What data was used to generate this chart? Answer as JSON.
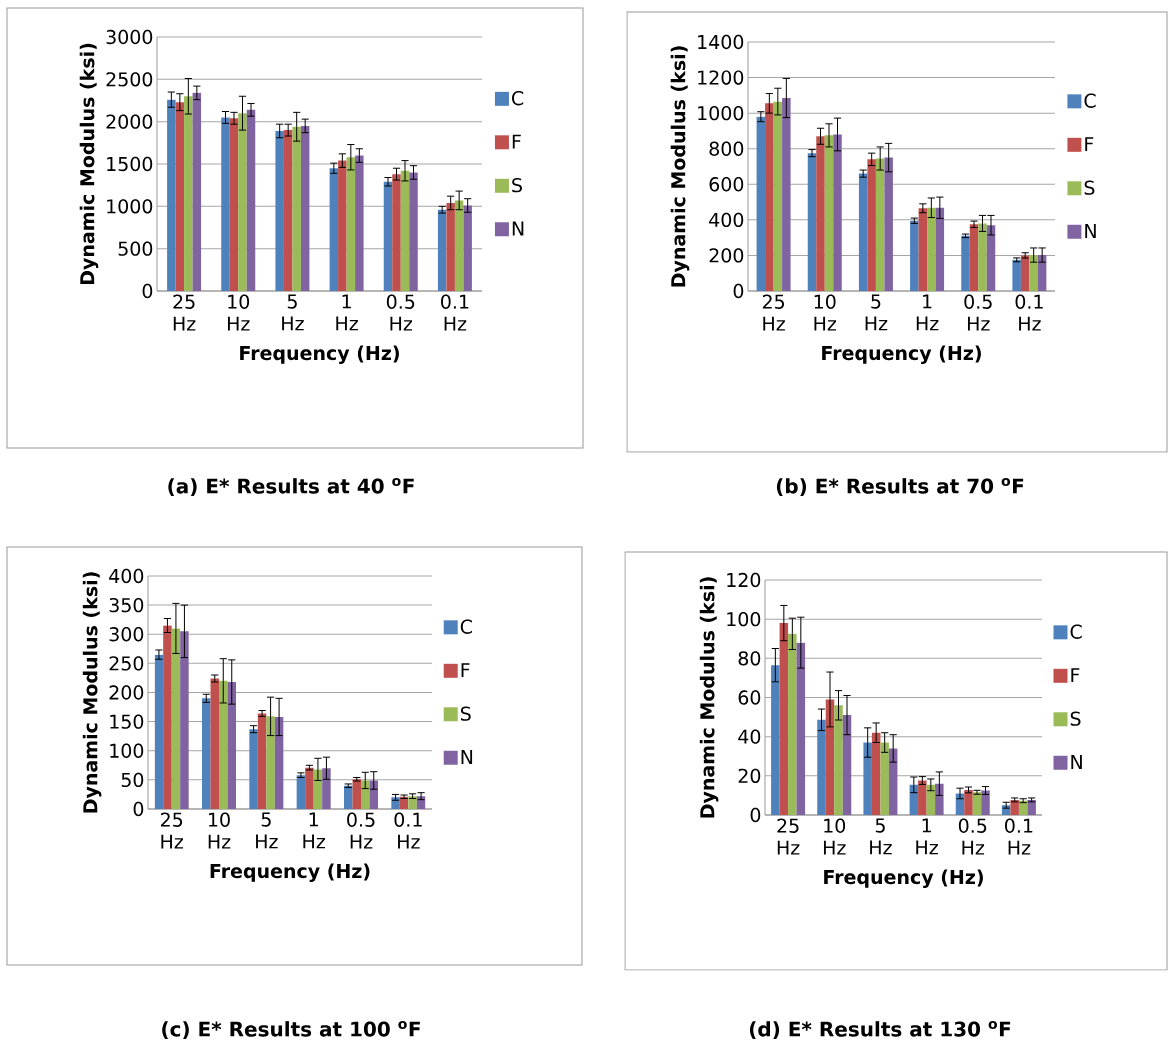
{
  "chart_data": [
    {
      "type": "bar",
      "title": "(a) E* Results at 40 $^{o}$F",
      "xlabel": "Frequency (Hz)",
      "ylabel": "Dynamic Modulus (ksi)",
      "categories": [
        "25 Hz",
        "10 Hz",
        "5 Hz",
        "1 Hz",
        "0.5 Hz",
        "0.1 Hz"
      ],
      "ylim": [
        0,
        3000
      ],
      "yticks": [
        0,
        500,
        1000,
        1500,
        2000,
        2500,
        3000
      ],
      "grid": "y",
      "legend": "right",
      "series": [
        {
          "name": "C",
          "color": "#4f81bd",
          "values": [
            2260,
            2050,
            1890,
            1450,
            1290,
            960
          ],
          "errors": [
            90,
            70,
            80,
            60,
            50,
            40
          ]
        },
        {
          "name": "F",
          "color": "#c0504d",
          "values": [
            2230,
            2040,
            1900,
            1540,
            1380,
            1040
          ],
          "errors": [
            100,
            70,
            70,
            80,
            70,
            80
          ]
        },
        {
          "name": "S",
          "color": "#9bbb59",
          "values": [
            2300,
            2100,
            1940,
            1580,
            1420,
            1070
          ],
          "errors": [
            210,
            200,
            170,
            150,
            120,
            110
          ]
        },
        {
          "name": "N",
          "color": "#8064a2",
          "values": [
            2340,
            2140,
            1950,
            1600,
            1400,
            1010
          ],
          "errors": [
            80,
            75,
            80,
            80,
            80,
            80
          ]
        }
      ]
    },
    {
      "type": "bar",
      "title": "(b) E* Results at 70 $^{o}$F",
      "xlabel": "Frequency (Hz)",
      "ylabel": "Dynamic Modulus (ksi)",
      "categories": [
        "25 Hz",
        "10 Hz",
        "5 Hz",
        "1 Hz",
        "0.5 Hz",
        "0.1 Hz"
      ],
      "ylim": [
        0,
        1400
      ],
      "yticks": [
        0,
        200,
        400,
        600,
        800,
        1000,
        1200,
        1400
      ],
      "grid": "y",
      "legend": "right",
      "series": [
        {
          "name": "C",
          "color": "#4f81bd",
          "values": [
            980,
            775,
            660,
            395,
            310,
            175
          ],
          "errors": [
            28,
            20,
            20,
            15,
            10,
            11
          ]
        },
        {
          "name": "F",
          "color": "#c0504d",
          "values": [
            1055,
            870,
            740,
            465,
            375,
            200
          ],
          "errors": [
            55,
            45,
            35,
            25,
            18,
            15
          ]
        },
        {
          "name": "S",
          "color": "#9bbb59",
          "values": [
            1065,
            875,
            745,
            468,
            380,
            202
          ],
          "errors": [
            75,
            65,
            65,
            55,
            45,
            40
          ]
        },
        {
          "name": "N",
          "color": "#8064a2",
          "values": [
            1085,
            880,
            750,
            468,
            370,
            202
          ],
          "errors": [
            110,
            92,
            80,
            60,
            55,
            40
          ]
        }
      ]
    },
    {
      "type": "bar",
      "title": "(c) E* Results at 100 $^{o}$F",
      "xlabel": "Frequency (Hz)",
      "ylabel": "Dynamic Modulus (ksi)",
      "categories": [
        "25 Hz",
        "10 Hz",
        "5 Hz",
        "1 Hz",
        "0.5 Hz",
        "0.1 Hz"
      ],
      "ylim": [
        0,
        400
      ],
      "yticks": [
        0,
        50,
        100,
        150,
        200,
        250,
        300,
        350,
        400
      ],
      "grid": "y",
      "legend": "right",
      "series": [
        {
          "name": "C",
          "color": "#4f81bd",
          "values": [
            265,
            190,
            137,
            58,
            40,
            20
          ],
          "errors": [
            8,
            7,
            6,
            4,
            3,
            5
          ]
        },
        {
          "name": "F",
          "color": "#c0504d",
          "values": [
            315,
            224,
            164,
            71,
            51,
            21
          ],
          "errors": [
            12,
            6,
            5,
            4,
            3,
            3
          ]
        },
        {
          "name": "S",
          "color": "#9bbb59",
          "values": [
            310,
            220,
            159,
            68,
            49,
            22
          ],
          "errors": [
            43,
            38,
            33,
            19,
            14,
            4
          ]
        },
        {
          "name": "N",
          "color": "#8064a2",
          "values": [
            305,
            218,
            158,
            70,
            49,
            22
          ],
          "errors": [
            45,
            38,
            32,
            19,
            15,
            6
          ]
        }
      ]
    },
    {
      "type": "bar",
      "title": "(d) E* Results at 130 $^{o}$F",
      "xlabel": "Frequency (Hz)",
      "ylabel": "Dynamic Modulus (ksi)",
      "categories": [
        "25 Hz",
        "10 Hz",
        "5 Hz",
        "1 Hz",
        "0.5 Hz",
        "0.1 Hz"
      ],
      "ylim": [
        0,
        120
      ],
      "yticks": [
        0,
        20,
        40,
        60,
        80,
        100,
        120
      ],
      "grid": "y",
      "legend": "right",
      "series": [
        {
          "name": "C",
          "color": "#4f81bd",
          "values": [
            76.5,
            48.6,
            37,
            15.4,
            11,
            5
          ],
          "errors": [
            8.5,
            5.5,
            7.5,
            4,
            2.7,
            1.5
          ]
        },
        {
          "name": "F",
          "color": "#c0504d",
          "values": [
            98,
            59,
            42,
            17.6,
            12.8,
            7.7
          ],
          "errors": [
            9,
            14,
            5,
            2,
            1.5,
            1
          ]
        },
        {
          "name": "S",
          "color": "#9bbb59",
          "values": [
            92.5,
            56,
            37,
            15.4,
            11.6,
            7.3
          ],
          "errors": [
            8,
            7.5,
            5,
            3,
            1,
            1
          ]
        },
        {
          "name": "N",
          "color": "#8064a2",
          "values": [
            88,
            51,
            34,
            16,
            12.5,
            7.7
          ],
          "errors": [
            13,
            10,
            7,
            6,
            2,
            1
          ]
        }
      ]
    }
  ]
}
